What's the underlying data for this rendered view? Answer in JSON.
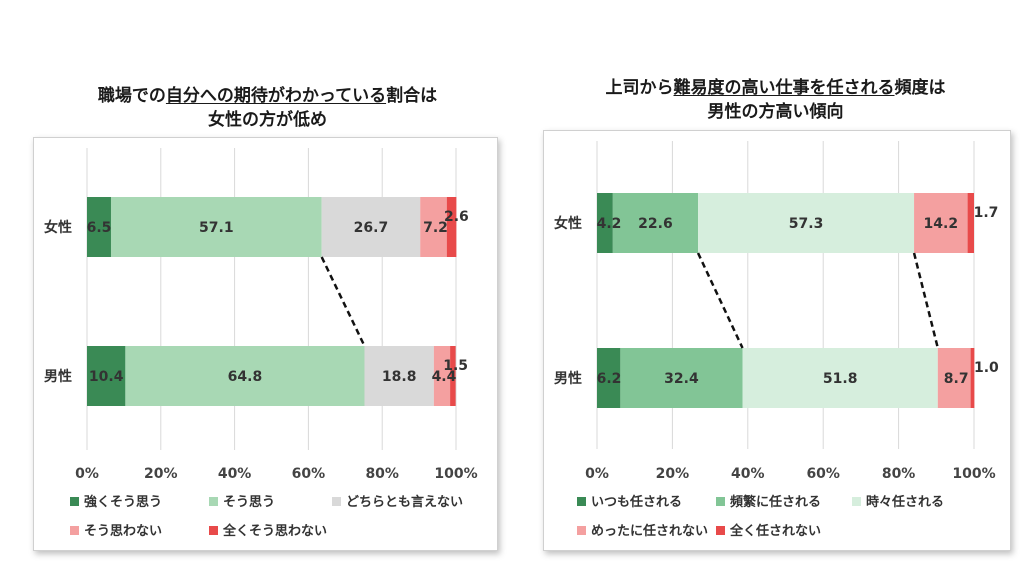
{
  "titles": {
    "left": {
      "line1_pre": "職場での",
      "line1_u": "自分への期待がわかっている",
      "line1_post": "割合は",
      "line2": "女性の方が低め"
    },
    "right": {
      "line1_pre": "上司から",
      "line1_u": "難易度の高い仕事を任される",
      "line1_post": "頻度は",
      "line2": "男性の方高い傾向"
    }
  },
  "chart_data": [
    {
      "type": "bar",
      "stacked": "100%",
      "orientation": "horizontal",
      "categories": [
        "女性",
        "男性"
      ],
      "series": [
        {
          "name": "強くそう思う",
          "color": "#3a8a55",
          "values": [
            6.5,
            10.4
          ]
        },
        {
          "name": "そう思う",
          "color": "#a8d8b4",
          "values": [
            57.1,
            64.8
          ]
        },
        {
          "name": "どちらとも言えない",
          "color": "#d9d9d9",
          "values": [
            26.7,
            18.8
          ]
        },
        {
          "name": "そう思わない",
          "color": "#f4a0a0",
          "values": [
            7.2,
            4.4
          ]
        },
        {
          "name": "全くそう思わない",
          "color": "#e84a4a",
          "values": [
            2.6,
            1.5
          ]
        }
      ],
      "xticks": [
        "0%",
        "20%",
        "40%",
        "60%",
        "80%",
        "100%"
      ],
      "xlim": [
        0,
        100
      ],
      "grid": true,
      "legend": "bottom"
    },
    {
      "type": "bar",
      "stacked": "100%",
      "orientation": "horizontal",
      "categories": [
        "女性",
        "男性"
      ],
      "series": [
        {
          "name": "いつも任される",
          "color": "#3a8a55",
          "values": [
            4.2,
            6.2
          ]
        },
        {
          "name": "頻繁に任される",
          "color": "#82c596",
          "values": [
            22.6,
            32.4
          ]
        },
        {
          "name": "時々任される",
          "color": "#d6eedd",
          "values": [
            57.3,
            51.8
          ]
        },
        {
          "name": "めったに任されない",
          "color": "#f4a0a0",
          "values": [
            14.2,
            8.7
          ]
        },
        {
          "name": "全く任されない",
          "color": "#e84a4a",
          "values": [
            1.7,
            1.0
          ]
        }
      ],
      "xticks": [
        "0%",
        "20%",
        "40%",
        "60%",
        "80%",
        "100%"
      ],
      "xlim": [
        0,
        100
      ],
      "grid": true,
      "legend": "bottom"
    }
  ]
}
